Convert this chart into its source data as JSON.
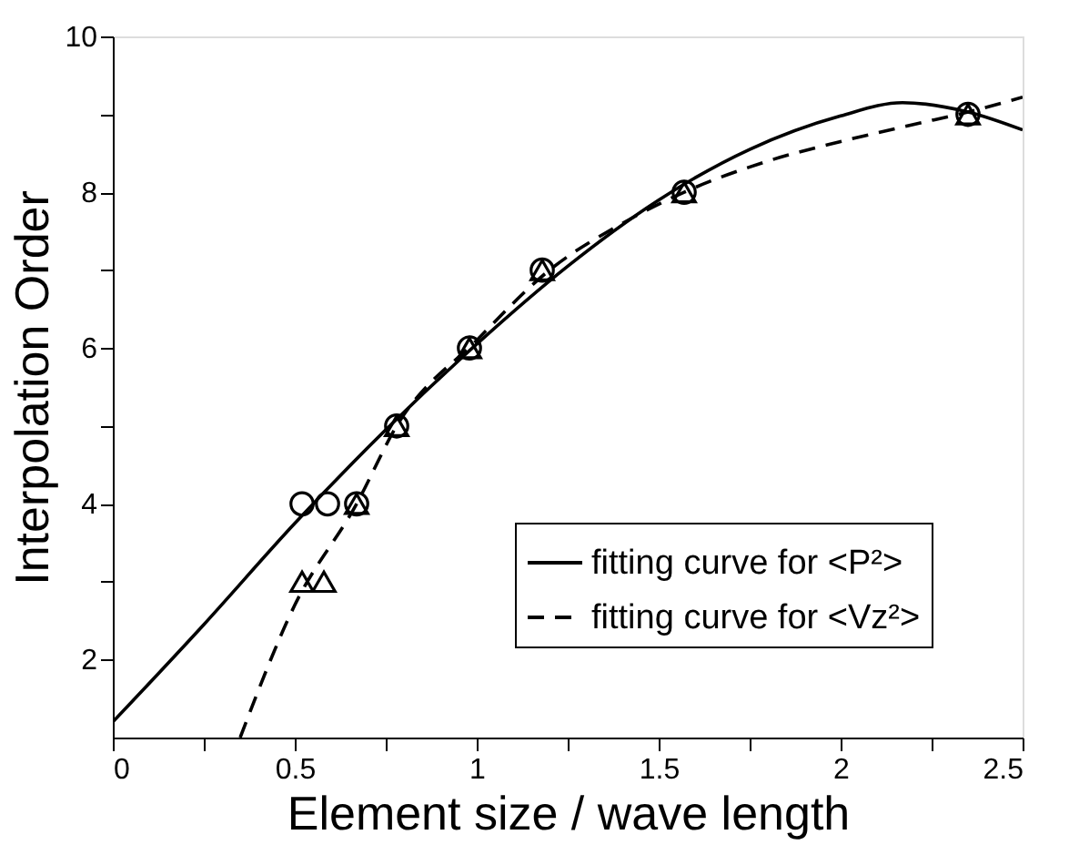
{
  "chart_data": {
    "type": "line",
    "xlabel": "Element size / wave length",
    "ylabel": "Interpolation Order",
    "xlim": [
      0,
      2.5
    ],
    "ylim": [
      1,
      10
    ],
    "xticks": [
      0,
      {
        "value": 0.25,
        "label": null
      },
      0.5,
      {
        "value": 0.75,
        "label": null
      },
      1,
      {
        "value": 1.25,
        "label": null
      },
      1.5,
      {
        "value": 1.75,
        "label": null
      },
      2,
      {
        "value": 2.25,
        "label": null
      },
      2.5
    ],
    "yticks": [
      2,
      {
        "value": 3,
        "label": null
      },
      4,
      {
        "value": 5,
        "label": null
      },
      6,
      {
        "value": 7,
        "label": null
      },
      8,
      {
        "value": 9,
        "label": null
      },
      10
    ],
    "grid": false,
    "legend": "bottom right",
    "series": [
      {
        "name": "fitting curve for <P²>",
        "line_style": "solid",
        "color": "#000000",
        "x": [
          0,
          0.25,
          0.5,
          0.75,
          1,
          1.25,
          1.5,
          1.75,
          2,
          2.17,
          2.35,
          2.5
        ],
        "values": [
          1.2,
          2.45,
          3.75,
          4.95,
          6.05,
          7.05,
          7.9,
          8.55,
          8.98,
          9.15,
          9.03,
          8.8
        ]
      },
      {
        "name": "fitting curve for <Vz²>",
        "line_style": "dashed",
        "color": "#000000",
        "x": [
          0.35,
          0.5,
          0.67,
          0.78,
          1,
          1.2,
          1.4,
          1.57,
          1.8,
          2,
          2.2,
          2.35,
          2.5
        ],
        "values": [
          1,
          2.7,
          4,
          5,
          6.1,
          7,
          7.6,
          8,
          8.4,
          8.65,
          8.87,
          9.03,
          9.22
        ]
      },
      {
        "type": "scatter",
        "marker": "circle",
        "color": "#000000",
        "x": [
          0.52,
          0.59,
          0.67,
          0.78,
          0.98,
          1.18,
          1.57,
          2.35
        ],
        "values": [
          4,
          4,
          4,
          5,
          6,
          7,
          8,
          9
        ]
      },
      {
        "type": "scatter",
        "marker": "triangle",
        "color": "#000000",
        "x": [
          0.52,
          0.58,
          0.67,
          0.78,
          0.98,
          1.18,
          1.57,
          2.35
        ],
        "values": [
          3,
          3,
          4,
          5,
          6,
          7,
          8,
          9
        ]
      }
    ]
  }
}
